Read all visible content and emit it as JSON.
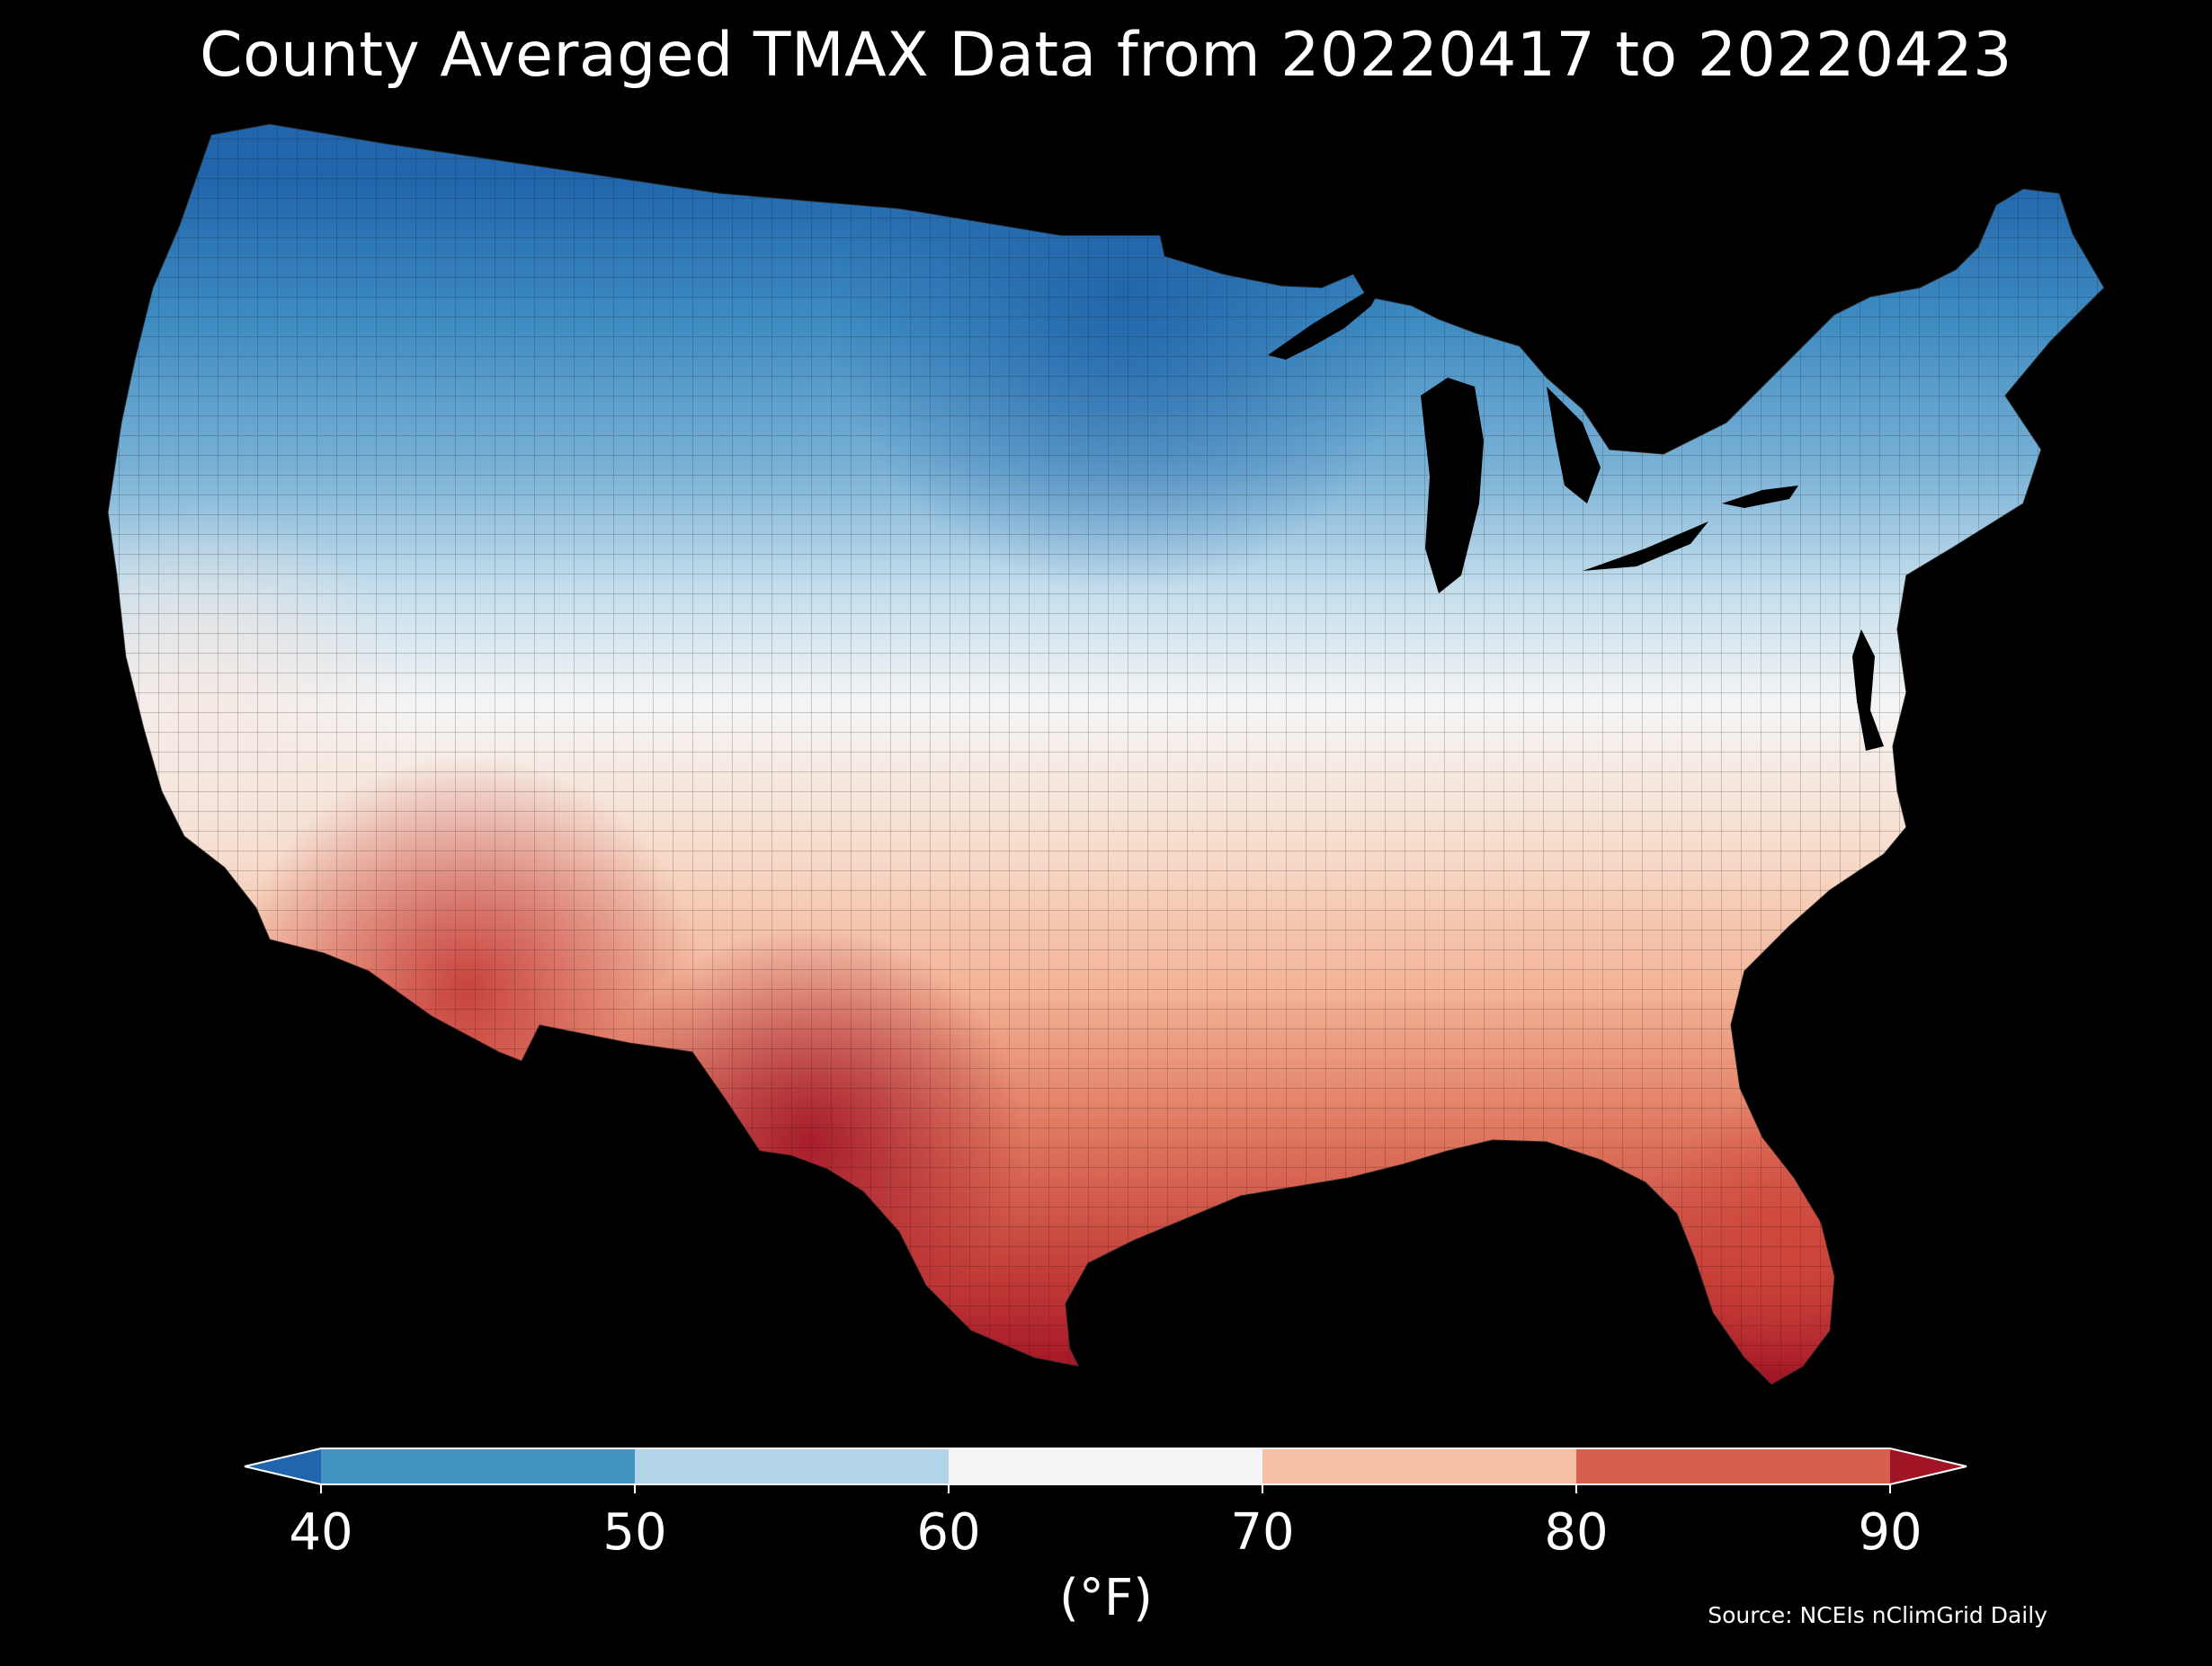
{
  "title": "County Averaged TMAX Data from 20220417 to 20220423",
  "colorbar": {
    "unit_label": "(°F)",
    "ticks": [
      "40",
      "50",
      "60",
      "70",
      "80",
      "90"
    ],
    "extend": "both",
    "bins": [
      {
        "range": "<40",
        "color": "#2166ac"
      },
      {
        "range": "40-50",
        "color": "#4393c3"
      },
      {
        "range": "50-60",
        "color": "#b2d4e8"
      },
      {
        "range": "60-70",
        "color": "#f5f5f5"
      },
      {
        "range": "70-80",
        "color": "#f5c0a5"
      },
      {
        "range": "80-90",
        "color": "#d6604d"
      },
      {
        "range": ">90",
        "color": "#a11426"
      }
    ]
  },
  "source": "Source: NCEIs nClimGrid Daily",
  "map": {
    "region": "contiguous United States",
    "field": "county-averaged daily maximum temperature (°F)",
    "land_fill_colors": {
      "very_cold": "#2166ac",
      "cold": "#4393c3",
      "cool": "#b2d4e8",
      "mild": "#f5f5f5",
      "warm": "#f5c0a5",
      "hot": "#d6604d",
      "very_hot": "#a11426"
    },
    "background": "#000000"
  }
}
